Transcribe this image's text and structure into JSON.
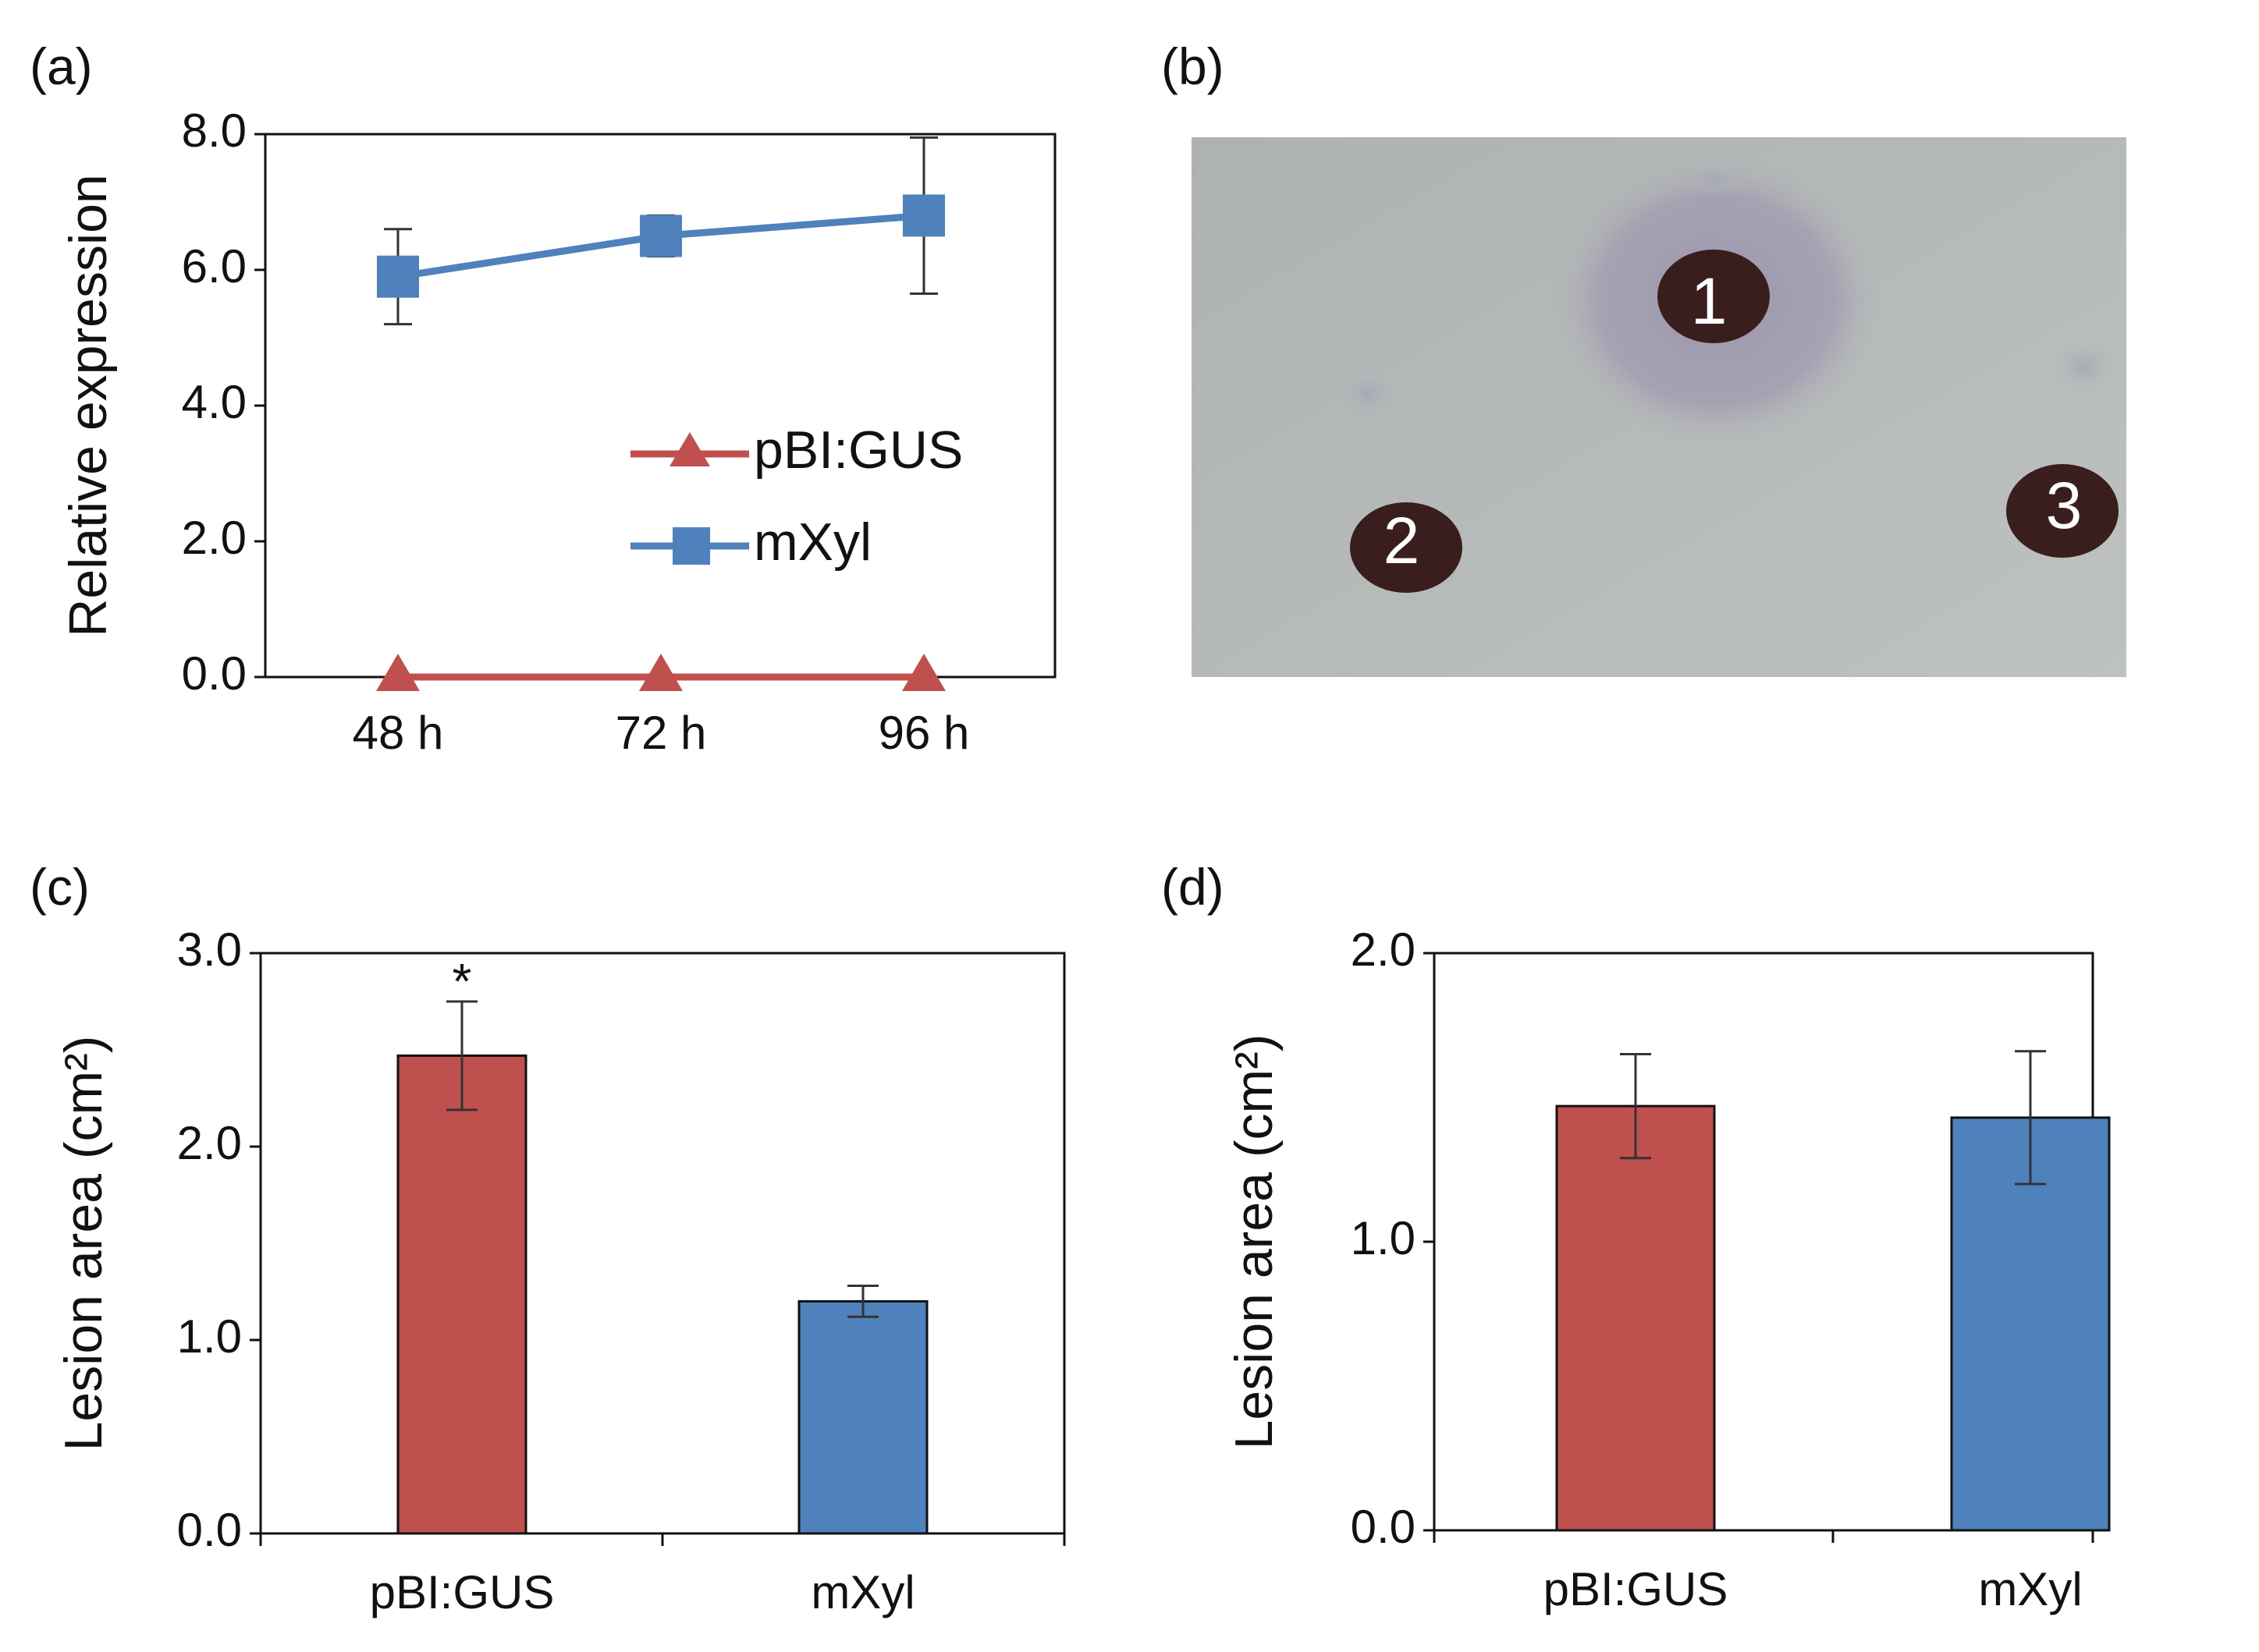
{
  "colors": {
    "red": "#C0504D",
    "blue": "#4F81BD",
    "error": "#333333",
    "plate_bg": "#B3B7B6",
    "spot": "#3A1E1E",
    "halo": "#A9A3B6"
  },
  "panels": {
    "a": "(a)",
    "b": "(b)",
    "c": "(c)",
    "d": "(d)"
  },
  "photo": {
    "spots": [
      "1",
      "2",
      "3"
    ]
  },
  "chart_data": [
    {
      "id": "a",
      "type": "line",
      "categories": [
        "48 h",
        "72 h",
        "96 h"
      ],
      "ylabel": "Relative expression",
      "ylim": [
        0,
        8.0
      ],
      "yticks": [
        "0.0",
        "2.0",
        "4.0",
        "6.0",
        "8.0"
      ],
      "legend_position": "center-right",
      "series": [
        {
          "name": "pBI:GUS",
          "marker": "triangle",
          "values": [
            0.0,
            0.0,
            0.0
          ],
          "errors": [
            0,
            0,
            0
          ]
        },
        {
          "name": "mXyl",
          "marker": "square",
          "values": [
            5.9,
            6.5,
            6.8
          ],
          "errors": [
            0.7,
            0.3,
            1.15
          ]
        }
      ]
    },
    {
      "id": "c",
      "type": "bar",
      "categories": [
        "pBI:GUS",
        "mXyl"
      ],
      "ylabel": "Lesion area (cm²)",
      "ylim": [
        0,
        3.0
      ],
      "yticks": [
        "0.0",
        "1.0",
        "2.0",
        "3.0"
      ],
      "values": [
        2.47,
        1.2
      ],
      "errors": [
        0.28,
        0.08
      ],
      "annotations": [
        "*",
        ""
      ]
    },
    {
      "id": "d",
      "type": "bar",
      "categories": [
        "pBI:GUS",
        "mXyl"
      ],
      "ylabel": "Lesion area (cm²)",
      "ylim": [
        0,
        2.0
      ],
      "yticks": [
        "0.0",
        "1.0",
        "2.0"
      ],
      "values": [
        1.47,
        1.43
      ],
      "errors": [
        0.18,
        0.23
      ],
      "annotations": [
        "",
        ""
      ]
    }
  ]
}
